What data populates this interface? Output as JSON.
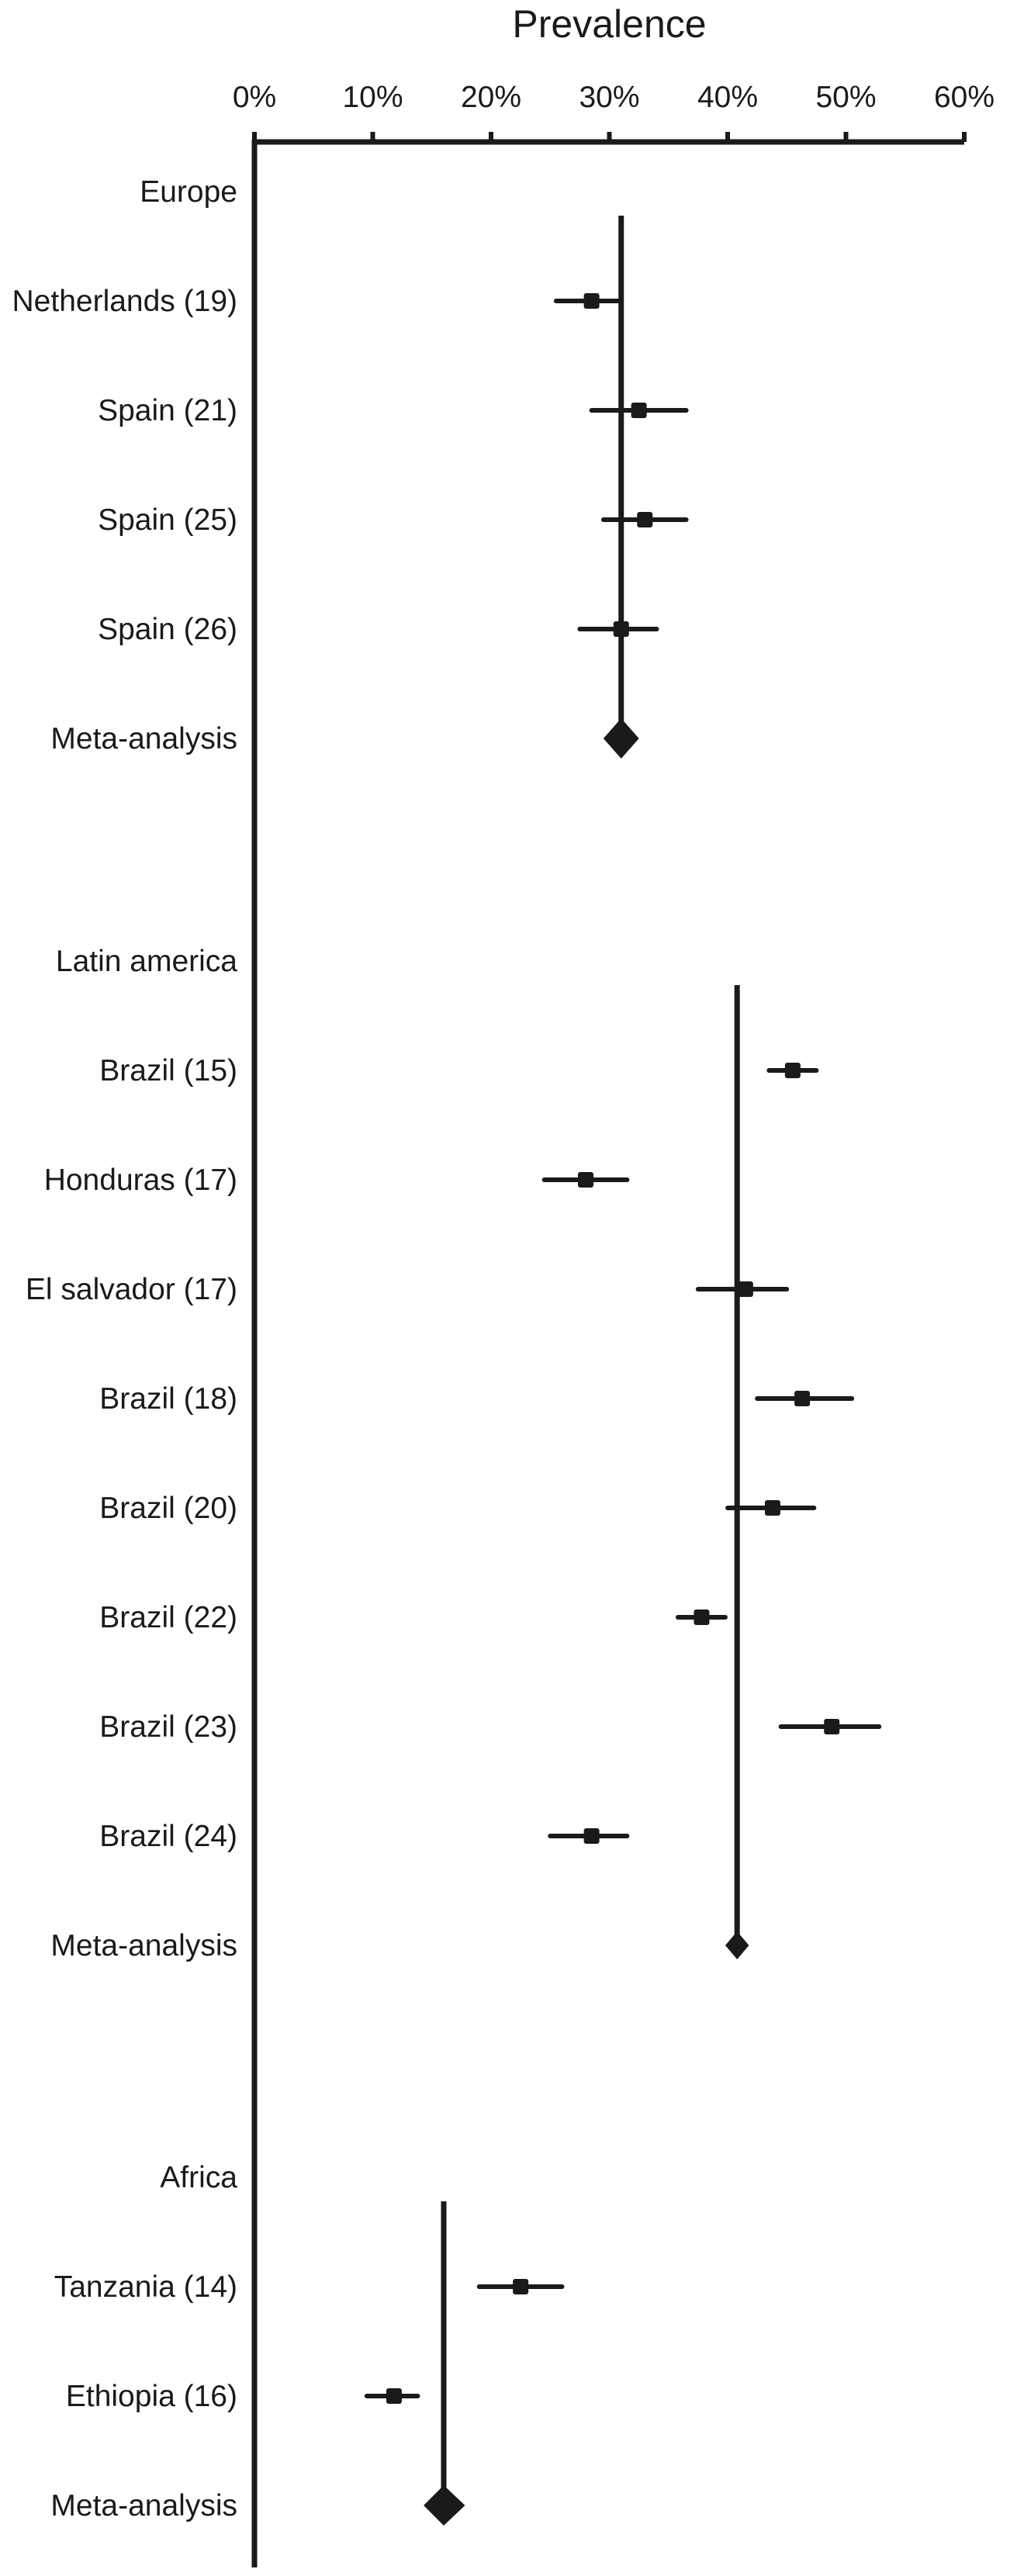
{
  "chart_data": {
    "type": "forest",
    "title": "Prevalence",
    "xlim": [
      0,
      60
    ],
    "x_ticks": [
      "0%",
      "10%",
      "20%",
      "30%",
      "40%",
      "50%",
      "60%"
    ],
    "groups": [
      {
        "name": "Europe",
        "pooled": 31,
        "studies": [
          {
            "label": "Netherlands (19)",
            "estimate": 28.5,
            "lower": 25.5,
            "upper": 31
          },
          {
            "label": "Spain (21)",
            "estimate": 32.5,
            "lower": 28.5,
            "upper": 36.5
          },
          {
            "label": "Spain (25)",
            "estimate": 33,
            "lower": 29.5,
            "upper": 36.5
          },
          {
            "label": "Spain (26)",
            "estimate": 31,
            "lower": 27.5,
            "upper": 34
          }
        ],
        "meta_label": "Meta-analysis",
        "meta": {
          "estimate": 31,
          "lower": 29.5,
          "upper": 32.5
        }
      },
      {
        "name": "Latin america",
        "pooled": 40.8,
        "studies": [
          {
            "label": "Brazil (15)",
            "estimate": 45.5,
            "lower": 43.5,
            "upper": 47.5
          },
          {
            "label": "Honduras (17)",
            "estimate": 28,
            "lower": 24.5,
            "upper": 31.5
          },
          {
            "label": "El salvador (17)",
            "estimate": 41.5,
            "lower": 37.5,
            "upper": 45
          },
          {
            "label": "Brazil (18)",
            "estimate": 46.3,
            "lower": 42.5,
            "upper": 50.5
          },
          {
            "label": "Brazil (20)",
            "estimate": 43.8,
            "lower": 40,
            "upper": 47.3
          },
          {
            "label": "Brazil (22)",
            "estimate": 37.8,
            "lower": 35.8,
            "upper": 39.8
          },
          {
            "label": "Brazil (23)",
            "estimate": 48.8,
            "lower": 44.5,
            "upper": 52.8
          },
          {
            "label": "Brazil (24)",
            "estimate": 28.5,
            "lower": 25,
            "upper": 31.5
          }
        ],
        "meta_label": "Meta-analysis",
        "meta": {
          "estimate": 40.8,
          "lower": 39.8,
          "upper": 41.8
        }
      },
      {
        "name": "Africa",
        "pooled": 16,
        "studies": [
          {
            "label": "Tanzania (14)",
            "estimate": 22.5,
            "lower": 19,
            "upper": 26
          },
          {
            "label": "Ethiopia (16)",
            "estimate": 11.8,
            "lower": 9.5,
            "upper": 13.8
          }
        ],
        "meta_label": "Meta-analysis",
        "meta": {
          "estimate": 16,
          "lower": 14.3,
          "upper": 17.8
        }
      }
    ]
  }
}
